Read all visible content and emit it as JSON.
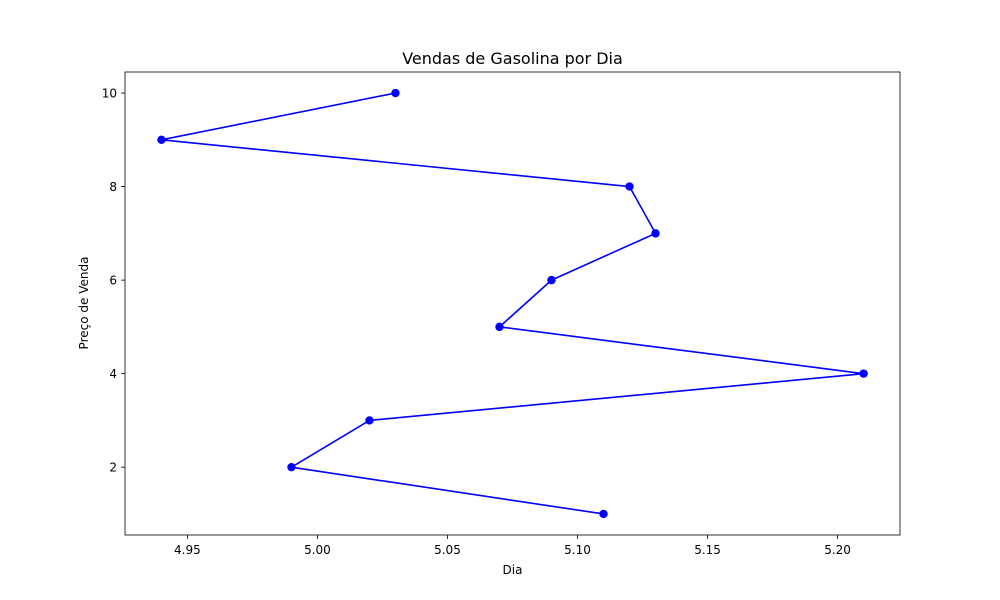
{
  "chart_data": {
    "type": "line",
    "title": "Vendas de Gasolina por Dia",
    "xlabel": "Dia",
    "ylabel": "Preço de Venda",
    "xlim": [
      4.926,
      5.224
    ],
    "ylim": [
      0.55,
      10.45
    ],
    "xticks": [
      4.95,
      5.0,
      5.05,
      5.1,
      5.15,
      5.2
    ],
    "xtick_labels": [
      "4.95",
      "5.00",
      "5.05",
      "5.10",
      "5.15",
      "5.20"
    ],
    "yticks": [
      2,
      4,
      6,
      8,
      10
    ],
    "ytick_labels": [
      "2",
      "4",
      "6",
      "8",
      "10"
    ],
    "grid": false,
    "series": [
      {
        "color": "#0000ff",
        "marker": "circle",
        "x": [
          5.03,
          4.94,
          5.12,
          5.13,
          5.09,
          5.07,
          5.21,
          5.02,
          4.99,
          5.11
        ],
        "y": [
          10,
          9,
          8,
          7,
          6,
          5,
          4,
          3,
          2,
          1
        ]
      }
    ]
  }
}
